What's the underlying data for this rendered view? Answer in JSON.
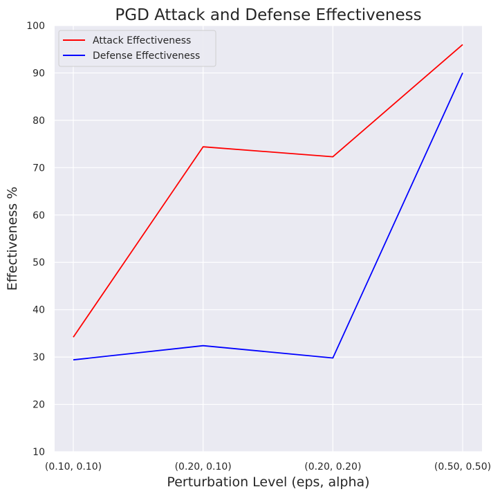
{
  "chart_data": {
    "type": "line",
    "title": "PGD Attack and Defense Effectiveness",
    "xlabel": "Perturbation Level (eps, alpha)",
    "ylabel": "Effectiveness %",
    "categories": [
      "(0.10, 0.10)",
      "(0.20, 0.10)",
      "(0.20, 0.20)",
      "(0.50, 0.50)"
    ],
    "ylim": [
      10,
      100
    ],
    "yticks": [
      10,
      20,
      30,
      40,
      50,
      60,
      70,
      80,
      90,
      100
    ],
    "grid": true,
    "legend_position": "top-left",
    "background": "#eaeaf2",
    "series": [
      {
        "name": "Attack Effectiveness",
        "color": "#ff0000",
        "values": [
          34.2,
          74.4,
          72.3,
          96.0
        ]
      },
      {
        "name": "Defense Effectiveness",
        "color": "#0000ff",
        "values": [
          29.4,
          32.4,
          29.8,
          90.0
        ]
      }
    ]
  }
}
